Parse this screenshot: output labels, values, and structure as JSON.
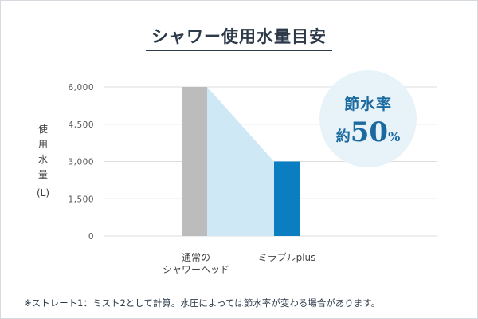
{
  "title": "シャワー使用水量目安",
  "y_axis_label": {
    "chars": [
      "使",
      "用",
      "水",
      "量"
    ],
    "unit": "(L)"
  },
  "badge": {
    "top": "節水率",
    "prefix": "約",
    "value": "50",
    "unit": "%"
  },
  "footnote": "※ストレート1：ミスト2として計算。水圧によっては節水率が変わる場合があります。",
  "colors": {
    "bar_conventional": "#bcbcbc",
    "bar_mirable": "#0b7ec1",
    "reduction_area": "#cfe8f6",
    "grid": "#d9dde1",
    "badge_bg": "#e8f3f9",
    "badge_text": "#1a6aa0"
  },
  "chart_data": {
    "type": "bar",
    "categories": [
      "通常の\nシャワーヘッド",
      "ミラブルplus"
    ],
    "category_lines": [
      [
        "通常の",
        "シャワーヘッド"
      ],
      [
        "ミラブルplus"
      ]
    ],
    "values": [
      6000,
      3000
    ],
    "yticks": [
      0,
      1500,
      3000,
      4500,
      6000
    ],
    "ytick_labels": [
      "0",
      "1,500",
      "3,000",
      "4,500",
      "6,000"
    ],
    "ylim": [
      0,
      6000
    ],
    "ylabel": "使用水量 (L)",
    "grid": true,
    "annotation": "節水率 約50%"
  }
}
